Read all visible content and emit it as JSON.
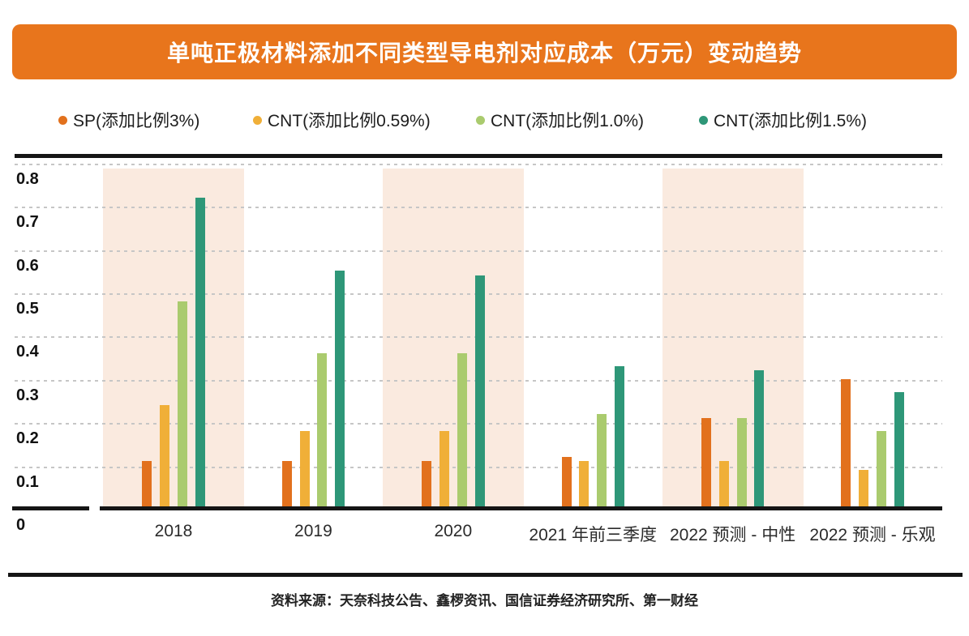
{
  "title": {
    "text": "单吨正极材料添加不同类型导电剂对应成本（万元）变动趋势",
    "bg_color": "#E8751C",
    "text_color": "#FFFFFF"
  },
  "legend": {
    "items": [
      {
        "label": "SP(添加比例3%)",
        "color": "#E2711D"
      },
      {
        "label": "CNT(添加比例0.59%)",
        "color": "#F0AF38"
      },
      {
        "label": "CNT(添加比例1.0%)",
        "color": "#AACB6E"
      },
      {
        "label": "CNT(添加比例1.5%)",
        "color": "#2E9778"
      }
    ]
  },
  "chart_data": {
    "type": "bar",
    "unit": "万元",
    "categories": [
      "2018",
      "2019",
      "2020",
      "2021 年前三季度",
      "2022 预测 - 中性",
      "2022 预测 - 乐观"
    ],
    "series": [
      {
        "name": "SP(添加比例3%)",
        "color": "#E2711D",
        "values": [
          0.11,
          0.11,
          0.11,
          0.12,
          0.21,
          0.3
        ]
      },
      {
        "name": "CNT(添加比例0.59%)",
        "color": "#F0AF38",
        "values": [
          0.24,
          0.18,
          0.18,
          0.11,
          0.11,
          0.09
        ]
      },
      {
        "name": "CNT(添加比例1.0%)",
        "color": "#AACB6E",
        "values": [
          0.48,
          0.36,
          0.36,
          0.22,
          0.21,
          0.18
        ]
      },
      {
        "name": "CNT(添加比例1.5%)",
        "color": "#2E9778",
        "values": [
          0.72,
          0.55,
          0.54,
          0.33,
          0.32,
          0.27
        ]
      }
    ],
    "ylim": [
      0,
      0.8
    ],
    "yticks": [
      "0",
      "0.1",
      "0.2",
      "0.3",
      "0.4",
      "0.5",
      "0.6",
      "0.7",
      "0.8"
    ],
    "grid": "horizontal-dashed",
    "grid_color": "#C6C6C6",
    "legend_position": "top",
    "highlighted_categories": [
      "2018",
      "2020",
      "2022 预测 - 中性"
    ],
    "highlight_color": "#FAEADF"
  },
  "footer": {
    "source": "资料来源：天奈科技公告、鑫椤资讯、国信证券经济研究所、第一财经"
  }
}
